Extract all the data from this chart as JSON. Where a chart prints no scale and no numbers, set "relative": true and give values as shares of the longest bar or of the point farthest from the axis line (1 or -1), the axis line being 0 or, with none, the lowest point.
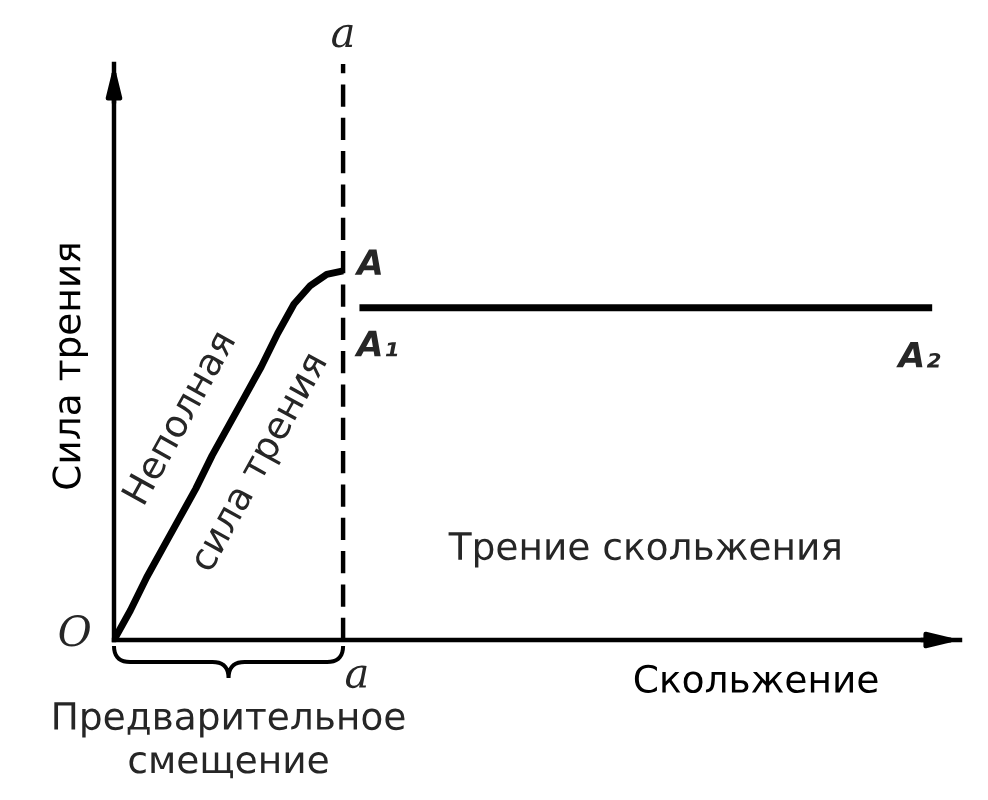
{
  "chart_data": {
    "type": "line",
    "relative": true,
    "tick_labels": false,
    "xlabel": "Скольжение",
    "ylabel": "Сила трения",
    "categories": [
      null,
      null,
      null,
      null,
      null,
      null,
      null,
      null,
      null,
      null,
      null,
      null,
      null,
      null,
      null,
      null,
      null,
      null,
      null,
      null,
      null,
      null,
      null,
      null,
      null,
      null,
      null,
      null,
      null,
      null,
      null,
      null,
      null,
      null,
      null,
      null,
      null,
      null,
      null,
      null,
      null,
      null,
      null,
      null,
      null,
      null,
      null,
      null,
      null,
      null,
      null
    ],
    "series": [
      {
        "color": "#000000",
        "values": [
          0,
          0.08,
          0.17,
          0.25,
          0.33,
          0.41,
          0.5,
          0.58,
          0.66,
          0.74,
          0.83,
          0.91,
          0.96,
          0.99,
          1,
          null,
          null,
          null,
          null,
          null,
          null,
          null,
          null,
          null,
          null,
          null,
          null,
          null,
          null,
          null,
          null,
          null,
          null,
          null,
          null,
          null,
          null,
          null,
          null,
          null,
          null,
          null,
          null,
          null,
          null,
          null,
          null,
          null,
          null,
          null,
          null
        ]
      },
      {
        "color": "#000000",
        "values": [
          null,
          null,
          null,
          null,
          null,
          null,
          null,
          null,
          null,
          null,
          null,
          null,
          null,
          null,
          null,
          0.9,
          0.9,
          0.9,
          0.9,
          0.9,
          0.9,
          0.9,
          0.9,
          0.9,
          0.9,
          0.9,
          0.9,
          0.9,
          0.9,
          0.9,
          0.9,
          0.9,
          0.9,
          0.9,
          0.9,
          0.9,
          0.9,
          0.9,
          0.9,
          0.9,
          0.9,
          0.9,
          0.9,
          0.9,
          0.9,
          0.9,
          0.9,
          0.9,
          0.9,
          0.9,
          0.9
        ]
      }
    ],
    "annotations": [
      "a",
      "O",
      "A",
      "A₁",
      "A₂",
      "Неполная\nсила трения",
      "Трение скольжения",
      "a",
      "Предварительное\nсмещение"
    ]
  }
}
